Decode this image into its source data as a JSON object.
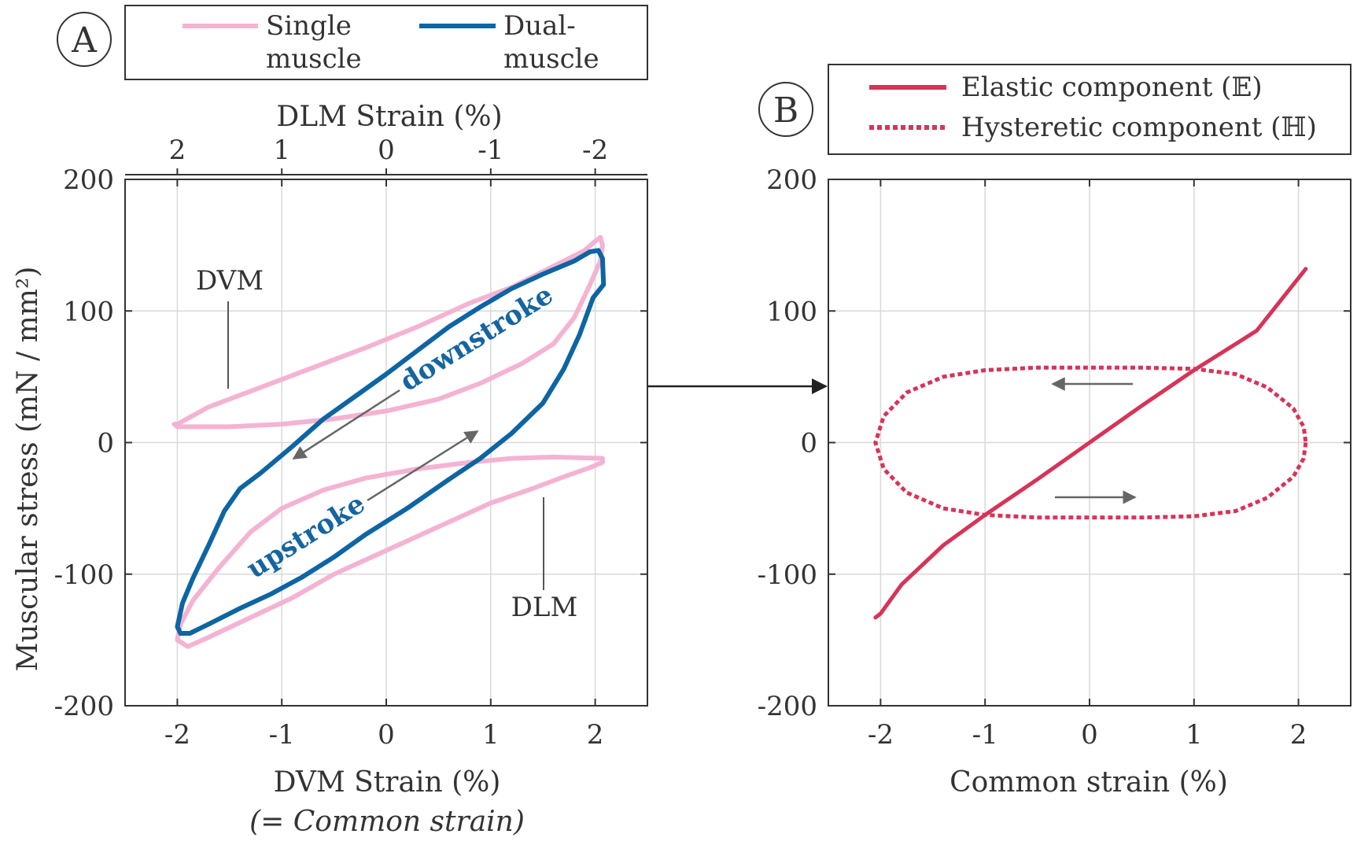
{
  "colors": {
    "single": "#f4b3d2",
    "dual": "#0d65a3",
    "elastic": "#d63458",
    "hysteretic": "#d63458",
    "arrow": "#666666",
    "grid": "#d8d8d8",
    "axis": "#333333"
  },
  "chart_data": [
    {
      "type": "line",
      "panel": "A",
      "panel_label": "A",
      "title": "",
      "xlabel": "DVM Strain (%)",
      "xlabel_note": "(= Common strain)",
      "x2label": "DLM Strain (%)",
      "ylabel": "Muscular stress (mN / mm²)",
      "xlim": [
        -2.5,
        2.5
      ],
      "ylim": [
        -200,
        200
      ],
      "grid": true,
      "xticks": [
        -2,
        -1,
        0,
        1,
        2
      ],
      "xtick_labels": [
        "-2",
        "-1",
        "0",
        "1",
        "2"
      ],
      "x2ticks": [
        -2,
        -1,
        0,
        1,
        2
      ],
      "x2tick_labels": [
        "2",
        "1",
        "0",
        "-1",
        "-2"
      ],
      "yticks": [
        -200,
        -100,
        0,
        100,
        200
      ],
      "ytick_labels": [
        "-200",
        "-100",
        "0",
        "100",
        "200"
      ],
      "legend": {
        "position": "top",
        "entries": [
          {
            "label_lines": [
              "Single",
              "muscle"
            ],
            "series": "single"
          },
          {
            "label_lines": [
              "Dual-",
              "muscle"
            ],
            "series": "dual"
          }
        ]
      },
      "series": [
        {
          "name": "DVM (single muscle)",
          "style": "single",
          "closed": true,
          "points": [
            [
              -2,
              14
            ],
            [
              -1.7,
              27
            ],
            [
              -1.2,
              42
            ],
            [
              -0.7,
              57
            ],
            [
              -0.2,
              72
            ],
            [
              0.3,
              88
            ],
            [
              0.8,
              106
            ],
            [
              1.2,
              118
            ],
            [
              1.6,
              134
            ],
            [
              1.9,
              146
            ],
            [
              2.0,
              153
            ],
            [
              2.05,
              156
            ],
            [
              2.07,
              150
            ],
            [
              2.05,
              138
            ],
            [
              1.95,
              120
            ],
            [
              1.8,
              95
            ],
            [
              1.6,
              75
            ],
            [
              1.3,
              60
            ],
            [
              0.9,
              45
            ],
            [
              0.5,
              33
            ],
            [
              0,
              24
            ],
            [
              -0.5,
              18
            ],
            [
              -1,
              14
            ],
            [
              -1.5,
              12
            ],
            [
              -2,
              12
            ],
            [
              -2.03,
              14
            ]
          ]
        },
        {
          "name": "DLM (single muscle)",
          "style": "single",
          "closed": true,
          "points": [
            [
              2.07,
              -12
            ],
            [
              1.6,
              -11
            ],
            [
              1.2,
              -12
            ],
            [
              0.8,
              -15
            ],
            [
              0.3,
              -20
            ],
            [
              -0.2,
              -27
            ],
            [
              -0.6,
              -36
            ],
            [
              -1,
              -50
            ],
            [
              -1.3,
              -68
            ],
            [
              -1.6,
              -95
            ],
            [
              -1.85,
              -120
            ],
            [
              -1.97,
              -138
            ],
            [
              -2.0,
              -150
            ],
            [
              -1.9,
              -155
            ],
            [
              -1.7,
              -148
            ],
            [
              -1.3,
              -133
            ],
            [
              -0.9,
              -118
            ],
            [
              -0.5,
              -100
            ],
            [
              0,
              -82
            ],
            [
              0.5,
              -64
            ],
            [
              1.0,
              -46
            ],
            [
              1.4,
              -35
            ],
            [
              1.7,
              -26
            ],
            [
              1.95,
              -19
            ],
            [
              2.07,
              -15
            ]
          ]
        },
        {
          "name": "Dual muscle",
          "style": "dual",
          "closed": true,
          "points": [
            [
              2.07,
              140
            ],
            [
              2.03,
              146
            ],
            [
              1.95,
              145
            ],
            [
              1.8,
              138
            ],
            [
              1.5,
              128
            ],
            [
              1.2,
              117
            ],
            [
              0.9,
              103
            ],
            [
              0.6,
              88
            ],
            [
              0.3,
              70
            ],
            [
              0,
              52
            ],
            [
              -0.3,
              35
            ],
            [
              -0.6,
              18
            ],
            [
              -0.9,
              -3
            ],
            [
              -1.2,
              -23
            ],
            [
              -1.4,
              -35
            ],
            [
              -1.55,
              -52
            ],
            [
              -1.7,
              -78
            ],
            [
              -1.85,
              -103
            ],
            [
              -1.95,
              -122
            ],
            [
              -2.0,
              -140
            ],
            [
              -1.97,
              -145
            ],
            [
              -1.88,
              -145
            ],
            [
              -1.7,
              -138
            ],
            [
              -1.4,
              -126
            ],
            [
              -1.1,
              -115
            ],
            [
              -0.8,
              -102
            ],
            [
              -0.5,
              -87
            ],
            [
              -0.2,
              -70
            ],
            [
              0.2,
              -50
            ],
            [
              0.6,
              -28
            ],
            [
              0.9,
              -12
            ],
            [
              1.2,
              7
            ],
            [
              1.5,
              30
            ],
            [
              1.7,
              56
            ],
            [
              1.85,
              82
            ],
            [
              1.98,
              110
            ],
            [
              2.08,
              120
            ]
          ]
        }
      ],
      "annotations": [
        {
          "text": "DVM",
          "style": "plain"
        },
        {
          "text": "DLM",
          "style": "plain"
        },
        {
          "text": "downstroke",
          "style": "dual"
        },
        {
          "text": "upstroke",
          "style": "dual"
        }
      ]
    },
    {
      "type": "line",
      "panel": "B",
      "panel_label": "B",
      "title": "",
      "xlabel": "Common strain (%)",
      "ylabel": "",
      "xlim": [
        -2.5,
        2.5
      ],
      "ylim": [
        -200,
        200
      ],
      "grid": true,
      "xticks": [
        -2,
        -1,
        0,
        1,
        2
      ],
      "xtick_labels": [
        "-2",
        "-1",
        "0",
        "1",
        "2"
      ],
      "yticks": [
        -200,
        -100,
        0,
        100,
        200
      ],
      "ytick_labels": [
        "-200",
        "-100",
        "0",
        "100",
        "200"
      ],
      "legend": {
        "position": "top",
        "entries": [
          {
            "label": "Elastic component (𝔼)",
            "series": "elastic"
          },
          {
            "label": "Hysteretic component (ℍ)",
            "series": "hysteretic"
          }
        ]
      },
      "series": [
        {
          "name": "Elastic component",
          "style": "elastic",
          "closed": false,
          "points": [
            [
              -2.05,
              -133
            ],
            [
              -2.0,
              -130
            ],
            [
              -1.8,
              -108
            ],
            [
              -1.4,
              -78
            ],
            [
              -1.0,
              -55
            ],
            [
              -0.5,
              -28
            ],
            [
              0,
              0
            ],
            [
              0.5,
              28
            ],
            [
              1.0,
              55
            ],
            [
              1.4,
              75
            ],
            [
              1.6,
              85
            ],
            [
              1.8,
              105
            ],
            [
              2.0,
              125
            ],
            [
              2.07,
              132
            ]
          ]
        },
        {
          "name": "Hysteretic component",
          "style": "hysteretic",
          "closed": true,
          "points": [
            [
              2.07,
              0
            ],
            [
              2.05,
              -12
            ],
            [
              1.95,
              -26
            ],
            [
              1.7,
              -42
            ],
            [
              1.4,
              -52
            ],
            [
              1.0,
              -56
            ],
            [
              0.5,
              -57
            ],
            [
              0,
              -57
            ],
            [
              -0.5,
              -57
            ],
            [
              -1.0,
              -55
            ],
            [
              -1.4,
              -50
            ],
            [
              -1.75,
              -38
            ],
            [
              -1.97,
              -20
            ],
            [
              -2.05,
              0
            ],
            [
              -1.97,
              20
            ],
            [
              -1.75,
              38
            ],
            [
              -1.4,
              50
            ],
            [
              -1.0,
              55
            ],
            [
              -0.5,
              57
            ],
            [
              0,
              57
            ],
            [
              0.5,
              57
            ],
            [
              1.0,
              56
            ],
            [
              1.4,
              52
            ],
            [
              1.7,
              42
            ],
            [
              1.95,
              26
            ],
            [
              2.05,
              12
            ]
          ]
        }
      ]
    }
  ]
}
